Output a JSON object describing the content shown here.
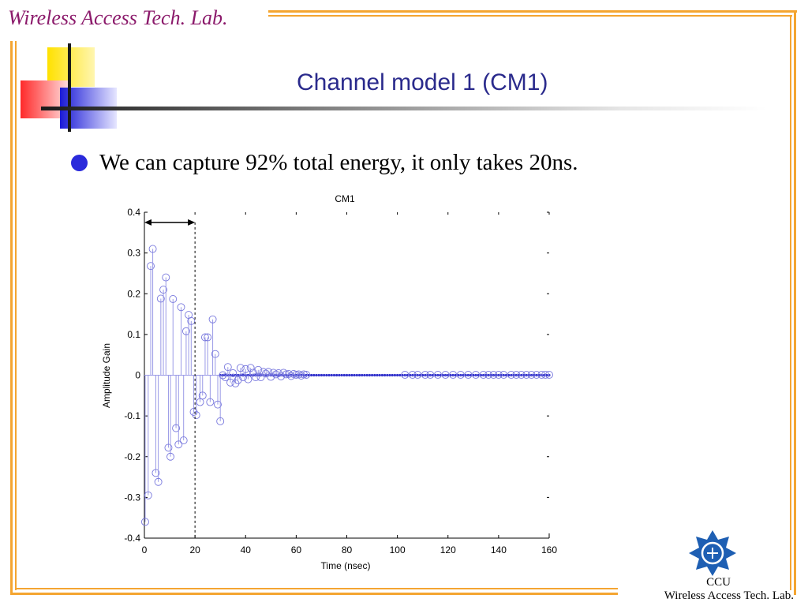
{
  "header": {
    "lab_name": "Wireless Access Tech. Lab."
  },
  "slide": {
    "title": "Channel model 1 (CM1)",
    "bullet": "We can capture 92% total energy, it only takes 20ns."
  },
  "footer": {
    "line1": "CCU",
    "line2": "Wireless Access Tech. Lab."
  },
  "colors": {
    "frame": "#f4a531",
    "stem": "#9a9ae6",
    "marker": "#7777dd",
    "title": "#2a2a8c"
  },
  "chart_data": {
    "type": "stem",
    "title": "CM1",
    "xlabel": "Time (nsec)",
    "ylabel": "Amplitude Gain",
    "xlim": [
      0,
      160
    ],
    "ylim": [
      -0.4,
      0.4
    ],
    "xticks": [
      0,
      20,
      40,
      60,
      80,
      100,
      120,
      140,
      160
    ],
    "yticks": [
      0.4,
      0.3,
      0.2,
      0.1,
      0,
      -0.1,
      -0.2,
      -0.3,
      -0.4
    ],
    "ytick_labels": [
      "0.4",
      "0.3",
      "0.2",
      "0.1",
      "0",
      "-0.1",
      "-0.2",
      "-0.3",
      "-0.4"
    ],
    "annotation": {
      "type": "double-arrow",
      "y": 0.375,
      "x_from": 0,
      "x_to": 20,
      "marker_line_x": 20
    },
    "points": [
      [
        0.3,
        -0.36
      ],
      [
        1.5,
        -0.295
      ],
      [
        2.5,
        0.268
      ],
      [
        3.3,
        0.31
      ],
      [
        4.5,
        -0.24
      ],
      [
        5.5,
        -0.262
      ],
      [
        6.5,
        0.188
      ],
      [
        7.5,
        0.21
      ],
      [
        8.5,
        0.24
      ],
      [
        9.5,
        -0.178
      ],
      [
        10.3,
        -0.2
      ],
      [
        11.3,
        0.187
      ],
      [
        12.5,
        -0.13
      ],
      [
        13.5,
        -0.17
      ],
      [
        14.5,
        0.167
      ],
      [
        15.5,
        -0.16
      ],
      [
        16.5,
        0.108
      ],
      [
        17.5,
        0.148
      ],
      [
        18.5,
        0.133
      ],
      [
        19.5,
        -0.09
      ],
      [
        20.5,
        -0.098
      ],
      [
        22,
        -0.066
      ],
      [
        23,
        -0.05
      ],
      [
        24,
        0.093
      ],
      [
        25,
        0.093
      ],
      [
        26,
        -0.066
      ],
      [
        27,
        0.137
      ],
      [
        28,
        0.052
      ],
      [
        29,
        -0.072
      ],
      [
        30,
        -0.113
      ],
      [
        31,
        0.0
      ],
      [
        32,
        -0.005
      ],
      [
        33,
        0.02
      ],
      [
        34,
        -0.018
      ],
      [
        35,
        0.005
      ],
      [
        36,
        -0.02
      ],
      [
        37,
        -0.012
      ],
      [
        38,
        0.018
      ],
      [
        39,
        -0.005
      ],
      [
        40,
        0.015
      ],
      [
        41,
        -0.01
      ],
      [
        42,
        0.018
      ],
      [
        43,
        0.006
      ],
      [
        44,
        -0.005
      ],
      [
        45,
        0.013
      ],
      [
        46,
        -0.005
      ],
      [
        47,
        0.008
      ],
      [
        48,
        0.004
      ],
      [
        49,
        0.008
      ],
      [
        50,
        -0.004
      ],
      [
        51,
        0.006
      ],
      [
        52,
        0.002
      ],
      [
        53,
        0.005
      ],
      [
        54,
        -0.003
      ],
      [
        55,
        0.006
      ],
      [
        56,
        0.002
      ],
      [
        57,
        0.003
      ],
      [
        58,
        -0.002
      ],
      [
        59,
        0.003
      ],
      [
        60,
        0.001
      ],
      [
        61,
        0.002
      ],
      [
        62,
        -0.001
      ],
      [
        63,
        0.002
      ],
      [
        64,
        0.001
      ],
      [
        103,
        0.001
      ],
      [
        106,
        0.001
      ],
      [
        108,
        0.001
      ],
      [
        111,
        0.001
      ],
      [
        113,
        0.001
      ],
      [
        116,
        0.001
      ],
      [
        119,
        0.001
      ],
      [
        122,
        0.001
      ],
      [
        125,
        0.001
      ],
      [
        128,
        0.001
      ],
      [
        131,
        0.001
      ],
      [
        134,
        0.001
      ],
      [
        136,
        0.001
      ],
      [
        138,
        0.001
      ],
      [
        140,
        0.001
      ],
      [
        142,
        0.001
      ],
      [
        145,
        0.001
      ],
      [
        147,
        0.001
      ],
      [
        149,
        0.001
      ],
      [
        151,
        0.001
      ],
      [
        153,
        0.001
      ],
      [
        155,
        0.001
      ],
      [
        157,
        0.001
      ],
      [
        158.5,
        0.001
      ],
      [
        160,
        0.001
      ]
    ],
    "baseline_dots": {
      "from": 30,
      "to": 160,
      "step": 1
    }
  }
}
